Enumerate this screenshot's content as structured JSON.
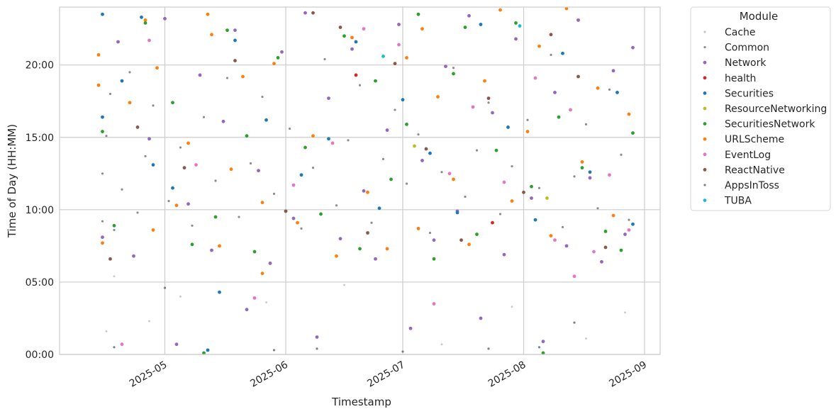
{
  "chart_data": {
    "type": "scatter",
    "xlabel": "Timestamp",
    "ylabel": "Time of Day (HH:MM)",
    "x_range": [
      "2025-04-04",
      "2025-09-05"
    ],
    "x_ticks": [
      {
        "date": "2025-05-01",
        "label": "2025-05"
      },
      {
        "date": "2025-06-01",
        "label": "2025-06"
      },
      {
        "date": "2025-07-01",
        "label": "2025-07"
      },
      {
        "date": "2025-08-01",
        "label": "2025-08"
      },
      {
        "date": "2025-09-01",
        "label": "2025-09"
      }
    ],
    "y_range_hours": [
      0,
      24
    ],
    "y_ticks": [
      {
        "hours": 0,
        "label": "00:00"
      },
      {
        "hours": 5,
        "label": "05:00"
      },
      {
        "hours": 10,
        "label": "10:00"
      },
      {
        "hours": 15,
        "label": "15:00"
      },
      {
        "hours": 20,
        "label": "20:00"
      }
    ],
    "grid": true,
    "data_range": [
      "2025-04-14",
      "2025-08-29"
    ],
    "legend": {
      "title": "Module",
      "placement": "outside-right",
      "entries": [
        {
          "name": "Cache",
          "color": "#c7c7c7"
        },
        {
          "name": "Common",
          "color": "#8c8c8c"
        },
        {
          "name": "Network",
          "color": "#9467bd"
        },
        {
          "name": "health",
          "color": "#d62728"
        },
        {
          "name": "Securities",
          "color": "#1f77b4"
        },
        {
          "name": "ResourceNetworking",
          "color": "#bcbd22"
        },
        {
          "name": "SecuritiesNetwork",
          "color": "#2ca02c"
        },
        {
          "name": "URLScheme",
          "color": "#ff7f0e"
        },
        {
          "name": "EventLog",
          "color": "#e377c2"
        },
        {
          "name": "ReactNative",
          "color": "#8c564b"
        },
        {
          "name": "AppsInToss",
          "color": "#7f7f7f"
        },
        {
          "name": "TUBA",
          "color": "#17becf"
        }
      ]
    },
    "series": [
      {
        "name": "Common",
        "points": [
          [
            "2025-04-15",
            9.2
          ],
          [
            "2025-04-15",
            12.5
          ],
          [
            "2025-04-16",
            15.1
          ],
          [
            "2025-04-17",
            18.0
          ],
          [
            "2025-04-18",
            8.6
          ],
          [
            "2025-04-20",
            11.4
          ],
          [
            "2025-04-22",
            19.5
          ],
          [
            "2025-04-24",
            9.8
          ],
          [
            "2025-04-26",
            13.7
          ],
          [
            "2025-04-28",
            17.2
          ],
          [
            "2025-05-02",
            10.6
          ],
          [
            "2025-05-05",
            14.3
          ],
          [
            "2025-05-08",
            8.9
          ],
          [
            "2025-05-11",
            16.4
          ],
          [
            "2025-05-14",
            12.0
          ],
          [
            "2025-05-17",
            19.1
          ],
          [
            "2025-05-20",
            9.5
          ],
          [
            "2025-05-23",
            13.2
          ],
          [
            "2025-05-26",
            17.8
          ],
          [
            "2025-05-29",
            11.1
          ],
          [
            "2025-06-02",
            15.6
          ],
          [
            "2025-06-05",
            8.7
          ],
          [
            "2025-06-08",
            12.9
          ],
          [
            "2025-06-11",
            20.4
          ],
          [
            "2025-06-14",
            10.3
          ],
          [
            "2025-06-17",
            14.8
          ],
          [
            "2025-06-20",
            18.6
          ],
          [
            "2025-06-23",
            9.1
          ],
          [
            "2025-06-26",
            13.5
          ],
          [
            "2025-06-29",
            16.9
          ],
          [
            "2025-07-02",
            11.8
          ],
          [
            "2025-07-05",
            15.2
          ],
          [
            "2025-07-08",
            8.4
          ],
          [
            "2025-07-11",
            12.6
          ],
          [
            "2025-07-14",
            19.8
          ],
          [
            "2025-07-17",
            10.9
          ],
          [
            "2025-07-20",
            14.1
          ],
          [
            "2025-07-23",
            17.4
          ],
          [
            "2025-07-26",
            9.7
          ],
          [
            "2025-07-29",
            13.0
          ],
          [
            "2025-08-02",
            16.2
          ],
          [
            "2025-08-05",
            11.5
          ],
          [
            "2025-08-08",
            20.7
          ],
          [
            "2025-08-11",
            8.8
          ],
          [
            "2025-08-14",
            12.3
          ],
          [
            "2025-08-17",
            15.9
          ],
          [
            "2025-08-20",
            10.1
          ],
          [
            "2025-08-23",
            18.3
          ],
          [
            "2025-08-26",
            13.8
          ],
          [
            "2025-08-28",
            9.3
          ]
        ]
      },
      {
        "name": "Network",
        "points": [
          [
            "2025-04-15",
            8.1
          ],
          [
            "2025-04-19",
            21.6
          ],
          [
            "2025-04-23",
            6.8
          ],
          [
            "2025-04-27",
            14.9
          ],
          [
            "2025-05-01",
            23.2
          ],
          [
            "2025-05-04",
            0.7
          ],
          [
            "2025-05-07",
            10.4
          ],
          [
            "2025-05-10",
            19.3
          ],
          [
            "2025-05-13",
            7.2
          ],
          [
            "2025-05-16",
            16.1
          ],
          [
            "2025-05-19",
            22.4
          ],
          [
            "2025-05-22",
            3.1
          ],
          [
            "2025-05-25",
            12.7
          ],
          [
            "2025-05-28",
            6.3
          ],
          [
            "2025-05-31",
            20.9
          ],
          [
            "2025-06-03",
            9.4
          ],
          [
            "2025-06-06",
            23.6
          ],
          [
            "2025-06-09",
            1.2
          ],
          [
            "2025-06-12",
            17.7
          ],
          [
            "2025-06-15",
            8.0
          ],
          [
            "2025-06-18",
            21.1
          ],
          [
            "2025-06-21",
            11.3
          ],
          [
            "2025-06-24",
            6.6
          ],
          [
            "2025-06-27",
            15.5
          ],
          [
            "2025-06-30",
            22.8
          ],
          [
            "2025-07-03",
            1.8
          ],
          [
            "2025-07-06",
            13.4
          ],
          [
            "2025-07-09",
            7.9
          ],
          [
            "2025-07-12",
            19.9
          ],
          [
            "2025-07-15",
            9.9
          ],
          [
            "2025-07-18",
            23.4
          ],
          [
            "2025-07-21",
            2.5
          ],
          [
            "2025-07-24",
            16.7
          ],
          [
            "2025-07-27",
            6.9
          ],
          [
            "2025-07-30",
            21.8
          ],
          [
            "2025-08-03",
            10.8
          ],
          [
            "2025-08-06",
            0.9
          ],
          [
            "2025-08-09",
            18.1
          ],
          [
            "2025-08-12",
            7.5
          ],
          [
            "2025-08-15",
            23.1
          ],
          [
            "2025-08-18",
            12.2
          ],
          [
            "2025-08-21",
            6.4
          ],
          [
            "2025-08-24",
            19.6
          ],
          [
            "2025-08-27",
            8.3
          ],
          [
            "2025-08-29",
            21.2
          ]
        ]
      },
      {
        "name": "URLScheme",
        "points": [
          [
            "2025-04-14",
            20.7
          ],
          [
            "2025-04-14",
            18.6
          ],
          [
            "2025-04-15",
            7.7
          ],
          [
            "2025-04-22",
            17.4
          ],
          [
            "2025-04-26",
            23.1
          ],
          [
            "2025-04-28",
            8.6
          ],
          [
            "2025-04-29",
            19.8
          ],
          [
            "2025-05-04",
            10.3
          ],
          [
            "2025-05-07",
            14.6
          ],
          [
            "2025-05-12",
            23.5
          ],
          [
            "2025-05-13",
            22.1
          ],
          [
            "2025-05-15",
            7.5
          ],
          [
            "2025-05-18",
            12.8
          ],
          [
            "2025-05-21",
            19.2
          ],
          [
            "2025-05-26",
            10.5
          ],
          [
            "2025-05-26",
            5.6
          ],
          [
            "2025-05-29",
            20.1
          ],
          [
            "2025-06-04",
            9.1
          ],
          [
            "2025-06-08",
            15.1
          ],
          [
            "2025-06-14",
            6.8
          ],
          [
            "2025-06-18",
            21.9
          ],
          [
            "2025-06-22",
            11.2
          ],
          [
            "2025-06-27",
            7.3
          ],
          [
            "2025-07-02",
            20.5
          ],
          [
            "2025-07-05",
            8.7
          ],
          [
            "2025-07-06",
            22.5
          ],
          [
            "2025-07-10",
            17.8
          ],
          [
            "2025-07-14",
            12.1
          ],
          [
            "2025-07-18",
            7.6
          ],
          [
            "2025-07-22",
            18.9
          ],
          [
            "2025-07-26",
            23.8
          ],
          [
            "2025-07-29",
            10.6
          ],
          [
            "2025-08-02",
            15.4
          ],
          [
            "2025-08-05",
            21.3
          ],
          [
            "2025-08-08",
            8.2
          ],
          [
            "2025-08-12",
            23.9
          ],
          [
            "2025-08-16",
            13.3
          ],
          [
            "2025-08-20",
            18.4
          ],
          [
            "2025-08-24",
            9.6
          ],
          [
            "2025-08-28",
            16.6
          ]
        ]
      },
      {
        "name": "SecuritiesNetwork",
        "points": [
          [
            "2025-04-15",
            15.4
          ],
          [
            "2025-04-18",
            8.9
          ],
          [
            "2025-04-26",
            22.9
          ],
          [
            "2025-05-03",
            17.4
          ],
          [
            "2025-05-08",
            7.6
          ],
          [
            "2025-05-11",
            0.1
          ],
          [
            "2025-05-14",
            9.5
          ],
          [
            "2025-05-17",
            22.4
          ],
          [
            "2025-05-22",
            15.1
          ],
          [
            "2025-05-24",
            7.1
          ],
          [
            "2025-05-30",
            20.5
          ],
          [
            "2025-06-06",
            14.3
          ],
          [
            "2025-06-10",
            9.7
          ],
          [
            "2025-06-16",
            22.0
          ],
          [
            "2025-06-20",
            7.3
          ],
          [
            "2025-06-24",
            18.9
          ],
          [
            "2025-06-28",
            12.1
          ],
          [
            "2025-07-02",
            15.9
          ],
          [
            "2025-07-05",
            23.5
          ],
          [
            "2025-07-09",
            6.6
          ],
          [
            "2025-07-14",
            19.4
          ],
          [
            "2025-07-17",
            22.6
          ],
          [
            "2025-07-20",
            8.3
          ],
          [
            "2025-07-25",
            14.1
          ],
          [
            "2025-07-30",
            22.9
          ],
          [
            "2025-08-03",
            11.6
          ],
          [
            "2025-08-06",
            0.1
          ],
          [
            "2025-08-10",
            16.4
          ],
          [
            "2025-08-16",
            12.9
          ],
          [
            "2025-08-22",
            8.5
          ],
          [
            "2025-08-26",
            7.2
          ],
          [
            "2025-08-29",
            15.3
          ]
        ]
      },
      {
        "name": "Securities",
        "points": [
          [
            "2025-04-15",
            23.5
          ],
          [
            "2025-04-15",
            16.4
          ],
          [
            "2025-04-20",
            18.9
          ],
          [
            "2025-04-25",
            23.3
          ],
          [
            "2025-04-28",
            13.1
          ],
          [
            "2025-05-03",
            11.5
          ],
          [
            "2025-05-12",
            0.3
          ],
          [
            "2025-05-15",
            4.3
          ],
          [
            "2025-05-19",
            21.7
          ],
          [
            "2025-05-27",
            16.2
          ],
          [
            "2025-06-05",
            12.4
          ],
          [
            "2025-06-12",
            14.9
          ],
          [
            "2025-06-19",
            21.6
          ],
          [
            "2025-06-25",
            10.1
          ],
          [
            "2025-07-01",
            17.6
          ],
          [
            "2025-07-08",
            13.9
          ],
          [
            "2025-07-15",
            9.8
          ],
          [
            "2025-07-21",
            22.8
          ],
          [
            "2025-07-28",
            15.7
          ],
          [
            "2025-08-04",
            9.3
          ],
          [
            "2025-08-11",
            20.8
          ],
          [
            "2025-08-18",
            12.6
          ],
          [
            "2025-08-25",
            18.1
          ],
          [
            "2025-08-29",
            9.0
          ]
        ]
      },
      {
        "name": "EventLog",
        "points": [
          [
            "2025-04-20",
            0.7
          ],
          [
            "2025-04-27",
            21.7
          ],
          [
            "2025-05-09",
            13.1
          ],
          [
            "2025-05-24",
            3.9
          ],
          [
            "2025-06-03",
            11.7
          ],
          [
            "2025-06-13",
            14.6
          ],
          [
            "2025-06-21",
            22.5
          ],
          [
            "2025-06-30",
            21.4
          ],
          [
            "2025-07-09",
            3.5
          ],
          [
            "2025-07-13",
            12.5
          ],
          [
            "2025-07-19",
            17.1
          ],
          [
            "2025-07-27",
            11.9
          ],
          [
            "2025-08-04",
            19.1
          ],
          [
            "2025-08-09",
            7.9
          ],
          [
            "2025-08-13",
            16.9
          ],
          [
            "2025-08-14",
            5.4
          ],
          [
            "2025-08-19",
            7.1
          ],
          [
            "2025-08-23",
            12.4
          ],
          [
            "2025-08-28",
            8.6
          ]
        ]
      },
      {
        "name": "ReactNative",
        "points": [
          [
            "2025-04-17",
            6.6
          ],
          [
            "2025-04-24",
            15.7
          ],
          [
            "2025-05-06",
            12.9
          ],
          [
            "2025-05-19",
            20.3
          ],
          [
            "2025-06-01",
            9.9
          ],
          [
            "2025-06-08",
            23.6
          ],
          [
            "2025-06-15",
            22.6
          ],
          [
            "2025-06-22",
            8.4
          ],
          [
            "2025-06-29",
            20.1
          ],
          [
            "2025-07-07",
            14.2
          ],
          [
            "2025-07-16",
            7.9
          ],
          [
            "2025-07-23",
            17.7
          ],
          [
            "2025-08-01",
            11.2
          ],
          [
            "2025-08-08",
            22.1
          ],
          [
            "2025-08-15",
            19.2
          ],
          [
            "2025-08-22",
            7.4
          ]
        ]
      },
      {
        "name": "Cache",
        "points": [
          [
            "2025-04-16",
            1.6
          ],
          [
            "2025-04-18",
            5.4
          ],
          [
            "2025-04-27",
            2.3
          ],
          [
            "2025-05-05",
            4.0
          ],
          [
            "2025-05-27",
            3.6
          ],
          [
            "2025-06-16",
            4.8
          ],
          [
            "2025-07-11",
            0.7
          ],
          [
            "2025-07-29",
            3.3
          ],
          [
            "2025-08-17",
            1.1
          ],
          [
            "2025-08-27",
            2.9
          ]
        ]
      },
      {
        "name": "AppsInToss",
        "points": [
          [
            "2025-04-18",
            0.5
          ],
          [
            "2025-05-01",
            4.6
          ],
          [
            "2025-05-29",
            0.3
          ],
          [
            "2025-06-09",
            0.4
          ],
          [
            "2025-07-01",
            0.2
          ],
          [
            "2025-07-23",
            0.4
          ],
          [
            "2025-08-05",
            0.5
          ],
          [
            "2025-08-14",
            2.2
          ]
        ]
      },
      {
        "name": "health",
        "points": [
          [
            "2025-06-19",
            19.3
          ],
          [
            "2025-07-24",
            9.1
          ]
        ]
      },
      {
        "name": "ResourceNetworking",
        "points": [
          [
            "2025-07-04",
            14.4
          ],
          [
            "2025-08-07",
            10.8
          ]
        ]
      },
      {
        "name": "TUBA",
        "points": [
          [
            "2025-06-26",
            20.6
          ],
          [
            "2025-07-31",
            22.7
          ]
        ]
      }
    ]
  }
}
